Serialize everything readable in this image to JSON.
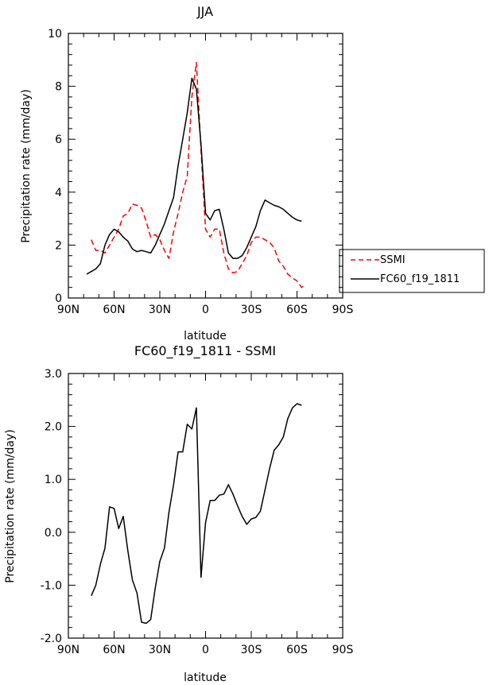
{
  "chart_data": [
    {
      "type": "line",
      "title": "JJA",
      "xlabel": "latitude",
      "ylabel": "Precipitation rate (mm/day)",
      "xlim": [
        90,
        -90
      ],
      "ylim": [
        0,
        10
      ],
      "xticks": [
        90,
        60,
        30,
        0,
        -30,
        -60,
        -90
      ],
      "xtick_labels": [
        "90N",
        "60N",
        "30N",
        "0",
        "30S",
        "60S",
        "90S"
      ],
      "yticks": [
        0,
        2,
        4,
        6,
        8,
        10
      ],
      "ytick_labels": [
        "0",
        "2",
        "4",
        "6",
        "8",
        "10"
      ],
      "legend": {
        "position": "right",
        "entries": [
          "SSMI",
          "FC60_f19_1811"
        ]
      },
      "series": [
        {
          "name": "SSMI",
          "color": "#ff0000",
          "dash": true,
          "x": [
            75,
            72,
            69,
            66,
            63,
            60,
            57,
            54,
            51,
            48,
            45,
            42,
            39,
            36,
            33,
            30,
            27,
            24,
            21,
            18,
            15,
            12,
            9,
            6,
            3,
            0,
            -3,
            -6,
            -9,
            -12,
            -15,
            -18,
            -21,
            -24,
            -27,
            -30,
            -33,
            -36,
            -39,
            -42,
            -45,
            -48,
            -51,
            -54,
            -57,
            -60,
            -63,
            -65
          ],
          "y": [
            2.2,
            1.8,
            1.8,
            1.7,
            2.0,
            2.3,
            2.6,
            3.1,
            3.2,
            3.55,
            3.5,
            3.4,
            2.9,
            2.3,
            2.4,
            2.2,
            1.8,
            1.5,
            2.5,
            3.2,
            4.0,
            4.6,
            7.6,
            8.9,
            5.6,
            2.6,
            2.3,
            2.6,
            2.6,
            1.7,
            1.1,
            0.95,
            1.0,
            1.3,
            1.6,
            2.1,
            2.3,
            2.3,
            2.2,
            2.1,
            1.9,
            1.4,
            1.2,
            0.9,
            0.75,
            0.65,
            0.4,
            0.5
          ]
        },
        {
          "name": "FC60_f19_1811",
          "color": "#000000",
          "dash": false,
          "x": [
            78,
            75,
            72,
            69,
            66,
            63,
            60,
            57,
            54,
            51,
            48,
            45,
            42,
            39,
            36,
            33,
            30,
            27,
            24,
            21,
            18,
            15,
            12,
            9,
            6,
            3,
            0,
            -3,
            -6,
            -9,
            -12,
            -15,
            -18,
            -21,
            -24,
            -27,
            -30,
            -33,
            -36,
            -39,
            -42,
            -45,
            -48,
            -51,
            -54,
            -57,
            -60,
            -63
          ],
          "y": [
            0.9,
            1.0,
            1.1,
            1.3,
            2.0,
            2.4,
            2.6,
            2.5,
            2.3,
            2.15,
            1.85,
            1.75,
            1.8,
            1.75,
            1.7,
            2.0,
            2.4,
            2.8,
            3.3,
            3.8,
            5.0,
            6.0,
            7.0,
            8.3,
            7.9,
            5.8,
            3.2,
            2.95,
            3.3,
            3.35,
            2.6,
            1.7,
            1.5,
            1.5,
            1.6,
            1.9,
            2.3,
            2.7,
            3.3,
            3.7,
            3.6,
            3.5,
            3.45,
            3.35,
            3.2,
            3.05,
            2.95,
            2.9
          ]
        }
      ]
    },
    {
      "type": "line",
      "title": "FC60_f19_1811 - SSMI",
      "xlabel": "latitude",
      "ylabel": "Precipitation rate (mm/day)",
      "xlim": [
        90,
        -90
      ],
      "ylim": [
        -2,
        3
      ],
      "xticks": [
        90,
        60,
        30,
        0,
        -30,
        -60,
        -90
      ],
      "xtick_labels": [
        "90N",
        "60N",
        "30N",
        "0",
        "30S",
        "60S",
        "90S"
      ],
      "yticks": [
        -2,
        -1,
        0,
        1,
        2,
        3
      ],
      "ytick_labels": [
        "-2.0",
        "-1.0",
        "0.0",
        "1.0",
        "2.0",
        "3.0"
      ],
      "series": [
        {
          "name": "FC60_f19_1811 - SSMI",
          "color": "#000000",
          "dash": false,
          "x": [
            75,
            72,
            69,
            66,
            63,
            60,
            57,
            54,
            51,
            48,
            45,
            42,
            39,
            36,
            33,
            30,
            27,
            24,
            21,
            18,
            15,
            12,
            9,
            6,
            3,
            0,
            -3,
            -6,
            -9,
            -12,
            -15,
            -18,
            -21,
            -24,
            -27,
            -30,
            -33,
            -36,
            -39,
            -42,
            -45,
            -48,
            -51,
            -54,
            -57,
            -60,
            -63
          ],
          "y": [
            -1.2,
            -1.0,
            -0.6,
            -0.3,
            0.48,
            0.45,
            0.07,
            0.3,
            -0.35,
            -0.9,
            -1.15,
            -1.7,
            -1.72,
            -1.65,
            -1.05,
            -0.55,
            -0.3,
            0.38,
            0.9,
            1.52,
            1.52,
            2.04,
            1.95,
            2.35,
            -0.85,
            0.18,
            0.6,
            0.6,
            0.7,
            0.72,
            0.9,
            0.72,
            0.5,
            0.3,
            0.15,
            0.25,
            0.28,
            0.4,
            0.8,
            1.2,
            1.55,
            1.65,
            1.8,
            2.15,
            2.35,
            2.43,
            2.4
          ]
        }
      ]
    }
  ]
}
